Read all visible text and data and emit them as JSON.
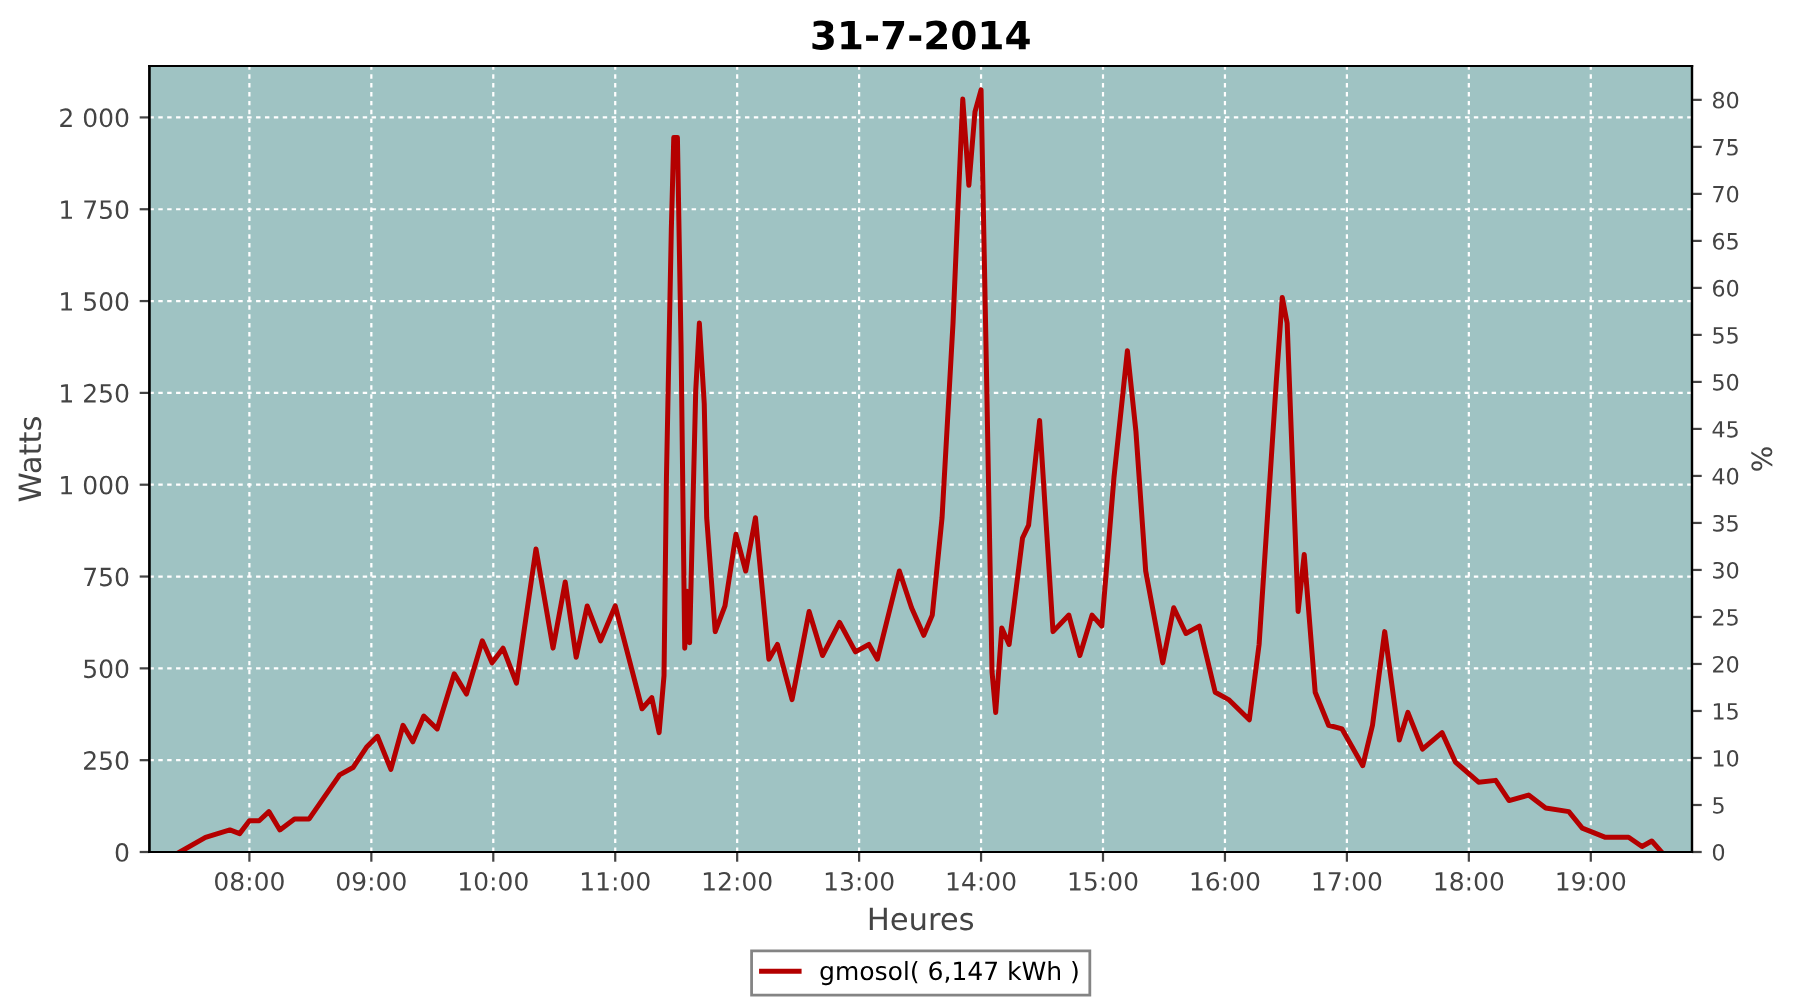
{
  "chart_data": {
    "type": "line",
    "title": "31-7-2014",
    "xlabel": "Heures",
    "ylabel": "Watts",
    "y2label": "%",
    "xlim": [
      7.18,
      19.83
    ],
    "xticks": [
      {
        "value": 8,
        "label": "08:00"
      },
      {
        "value": 9,
        "label": "09:00"
      },
      {
        "value": 10,
        "label": "10:00"
      },
      {
        "value": 11,
        "label": "11:00"
      },
      {
        "value": 12,
        "label": "12:00"
      },
      {
        "value": 13,
        "label": "13:00"
      },
      {
        "value": 14,
        "label": "14:00"
      },
      {
        "value": 15,
        "label": "15:00"
      },
      {
        "value": 16,
        "label": "16:00"
      },
      {
        "value": 17,
        "label": "17:00"
      },
      {
        "value": 18,
        "label": "18:00"
      },
      {
        "value": 19,
        "label": "19:00"
      }
    ],
    "ylim": [
      0,
      2140
    ],
    "yticks": [
      0,
      250,
      500,
      750,
      {
        "value": 1000,
        "label": "1 000"
      },
      {
        "value": 1250,
        "label": "1 250"
      },
      {
        "value": 1500,
        "label": "1 500"
      },
      {
        "value": 1750,
        "label": "1 750"
      },
      {
        "value": 2000,
        "label": "2 000"
      }
    ],
    "y2lim": [
      0,
      83.6
    ],
    "y2ticks": [
      0,
      5,
      10,
      15,
      20,
      25,
      30,
      35,
      40,
      45,
      50,
      55,
      60,
      65,
      70,
      75,
      80
    ],
    "grid": true,
    "legend": "bottom",
    "line_style": "solid",
    "series": [
      {
        "name": "gmosol( 6,147 kWh )",
        "color": "#b40000",
        "x": [
          7.43,
          7.64,
          7.84,
          7.92,
          8.0,
          8.08,
          8.16,
          8.25,
          8.37,
          8.49,
          8.74,
          8.85,
          8.96,
          9.05,
          9.16,
          9.26,
          9.34,
          9.43,
          9.54,
          9.68,
          9.78,
          9.91,
          9.99,
          10.08,
          10.19,
          10.35,
          10.49,
          10.59,
          10.68,
          10.77,
          10.88,
          11.0,
          11.22,
          11.3,
          11.36,
          11.4,
          11.42,
          11.46,
          11.48,
          11.51,
          11.54,
          11.57,
          11.59,
          11.61,
          11.66,
          11.69,
          11.73,
          11.75,
          11.82,
          11.9,
          11.99,
          12.07,
          12.15,
          12.26,
          12.33,
          12.45,
          12.59,
          12.7,
          12.84,
          12.97,
          13.08,
          13.15,
          13.33,
          13.43,
          13.53,
          13.6,
          13.68,
          13.77,
          13.81,
          13.85,
          13.9,
          13.95,
          14.0,
          14.04,
          14.09,
          14.12,
          14.17,
          14.23,
          14.34,
          14.39,
          14.48,
          14.59,
          14.72,
          14.81,
          14.91,
          14.99,
          15.09,
          15.2,
          15.27,
          15.35,
          15.49,
          15.58,
          15.68,
          15.79,
          15.92,
          16.03,
          16.2,
          16.28,
          16.42,
          16.47,
          16.51,
          16.6,
          16.65,
          16.74,
          16.85,
          16.96,
          17.13,
          17.21,
          17.31,
          17.43,
          17.5,
          17.62,
          17.78,
          17.89,
          18.08,
          18.22,
          18.33,
          18.49,
          18.63,
          18.82,
          18.93,
          19.12,
          19.31,
          19.42,
          19.5,
          19.58
        ],
        "values": [
          0,
          40,
          60,
          50,
          85,
          85,
          110,
          60,
          90,
          90,
          210,
          230,
          285,
          315,
          225,
          345,
          300,
          370,
          335,
          485,
          430,
          575,
          515,
          555,
          460,
          825,
          555,
          735,
          530,
          670,
          575,
          670,
          390,
          420,
          325,
          480,
          1020,
          1695,
          1945,
          1945,
          1375,
          555,
          710,
          570,
          1255,
          1440,
          1220,
          910,
          600,
          670,
          865,
          765,
          910,
          525,
          565,
          415,
          655,
          535,
          625,
          545,
          565,
          525,
          765,
          665,
          590,
          645,
          910,
          1440,
          1750,
          2050,
          1815,
          2015,
          2075,
          1385,
          490,
          380,
          610,
          565,
          855,
          890,
          1175,
          600,
          645,
          535,
          645,
          615,
          1020,
          1365,
          1145,
          765,
          515,
          665,
          595,
          615,
          435,
          415,
          360,
          565,
          1275,
          1510,
          1440,
          655,
          810,
          435,
          345,
          335,
          235,
          345,
          600,
          305,
          380,
          280,
          325,
          245,
          190,
          195,
          140,
          155,
          120,
          110,
          65,
          40,
          40,
          15,
          30,
          0
        ]
      }
    ]
  }
}
